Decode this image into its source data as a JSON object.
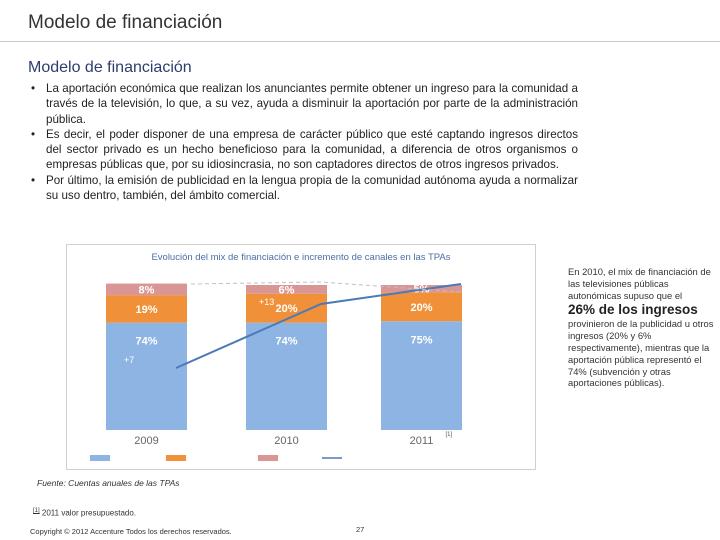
{
  "header": {
    "title": "Modelo de financiación"
  },
  "content": {
    "subtitle": "Modelo de financiación",
    "bullets": [
      "La aportación económica que realizan los anunciantes permite obtener un ingreso para la comunidad a través de la televisión, lo que, a su vez, ayuda a disminuir la aportación por parte de la administración pública.",
      "Es decir, el poder disponer de una empresa de carácter público que esté captando ingresos directos del sector privado es un hecho beneficioso para la comunidad, a diferencia de otros organismos o empresas públicas que, por su idiosincrasia, no son captadores directos de otros ingresos privados.",
      "Por último, la emisión de publicidad en la lengua propia de la comunidad autónoma ayuda a normalizar su uso dentro, también, del ámbito comercial."
    ]
  },
  "chart_data": {
    "type": "bar",
    "title": "Evolución del mix de financiación e incremento de canales en las TPAs",
    "categories": [
      "2009",
      "2010",
      "2011"
    ],
    "category_note": {
      "2011": "[1]"
    },
    "stacked": true,
    "series": [
      {
        "values": [
          74,
          74,
          75
        ],
        "labels": [
          "74%",
          "74%",
          "75%"
        ],
        "color": "#8eb4e3"
      },
      {
        "values": [
          19,
          20,
          20
        ],
        "labels": [
          "19%",
          "20%",
          "20%"
        ],
        "color": "#f0913a"
      },
      {
        "values": [
          8,
          6,
          5
        ],
        "labels": [
          "8%",
          "6%",
          "5%"
        ],
        "color": "#d99694"
      }
    ],
    "line": {
      "color": "#4a7ab8",
      "annotations": [
        "+7",
        "+13"
      ]
    },
    "legend_colors": [
      "#8eb4e3",
      "#f0913a",
      "#d99694",
      "#4a7ab8"
    ]
  },
  "side_text": {
    "before": "En 2010, el mix de financiación de las televisiones públicas autonómicas supuso que el",
    "highlight": "26% de los ingresos",
    "after": "provinieron de la publicidad u otros ingresos (20% y 6% respectivamente), mientras que la aportación pública representó el 74% (subvención y otras aportaciones públicas)."
  },
  "footer": {
    "source": "Fuente: Cuentas anuales de las TPAs",
    "footnote_mark": "[1]",
    "footnote_text": "2011 valor presupuestado.",
    "copyright": "Copyright © 2012 Accenture Todos los derechos reservados.",
    "page_number": "27"
  }
}
